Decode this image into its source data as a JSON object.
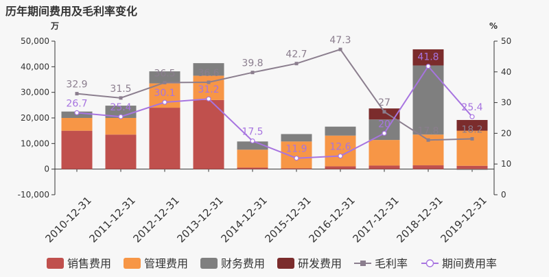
{
  "title": "历年期间费用及毛利率变化",
  "chart_data": {
    "type": "bar",
    "title": "历年期间费用及毛利率变化",
    "categories": [
      "2010-12-31",
      "2011-12-31",
      "2012-12-31",
      "2013-12-31",
      "2014-12-31",
      "2015-12-31",
      "2016-12-31",
      "2017-12-31",
      "2018-12-31",
      "2019-12-31"
    ],
    "left_axis": {
      "unit_label": "万",
      "ylim": [
        -10000,
        50000
      ],
      "ticks": [
        "-10,000",
        "0",
        "10,000",
        "20,000",
        "30,000",
        "40,000",
        "50,000"
      ]
    },
    "right_axis": {
      "unit_label": "%",
      "ylim": [
        0,
        50
      ],
      "ticks": [
        "0",
        "10",
        "20",
        "30",
        "40",
        "50"
      ]
    },
    "series": [
      {
        "name": "销售费用",
        "kind": "bar",
        "stack": "cost",
        "color": "#c0504d",
        "values": [
          15000,
          13500,
          24000,
          27000,
          600,
          300,
          1100,
          1400,
          1500,
          1300
        ]
      },
      {
        "name": "管理费用",
        "kind": "bar",
        "stack": "cost",
        "color": "#f79646",
        "values": [
          5000,
          6500,
          9500,
          9500,
          7000,
          10500,
          12000,
          10000,
          12000,
          13700
        ]
      },
      {
        "name": "财务费用",
        "kind": "bar",
        "stack": "cost",
        "color": "#7f7f7f",
        "values": [
          2500,
          4800,
          4700,
          4900,
          3200,
          2900,
          3500,
          8000,
          27000,
          -300
        ]
      },
      {
        "name": "研发费用",
        "kind": "bar",
        "stack": "cost",
        "color": "#7b2c2c",
        "values": [
          0,
          0,
          0,
          0,
          0,
          0,
          0,
          4300,
          6300,
          4200
        ]
      },
      {
        "name": "毛利率",
        "kind": "line",
        "axis": "right",
        "color": "#8b7e8e",
        "marker": "square",
        "values": [
          32.9,
          31.5,
          36.5,
          36.6,
          39.8,
          42.7,
          47.3,
          27,
          17.8,
          18.2
        ],
        "labels": [
          "32.9",
          "31.5",
          "36.5",
          "36.6",
          "39.8",
          "42.7",
          "47.3",
          "27",
          "17.8",
          "18.2"
        ]
      },
      {
        "name": "期间费用率",
        "kind": "line",
        "axis": "right",
        "color": "#a774e0",
        "marker": "circle",
        "values": [
          26.7,
          25.4,
          30.1,
          31.2,
          17.5,
          11.9,
          12.6,
          20,
          41.8,
          25.4
        ],
        "labels": [
          "26.7",
          "25.4",
          "30.1",
          "31.2",
          "17.5",
          "11.9",
          "12.6",
          "20",
          "41.8",
          "25.4"
        ]
      }
    ],
    "legend_position": "bottom",
    "grid": false
  }
}
